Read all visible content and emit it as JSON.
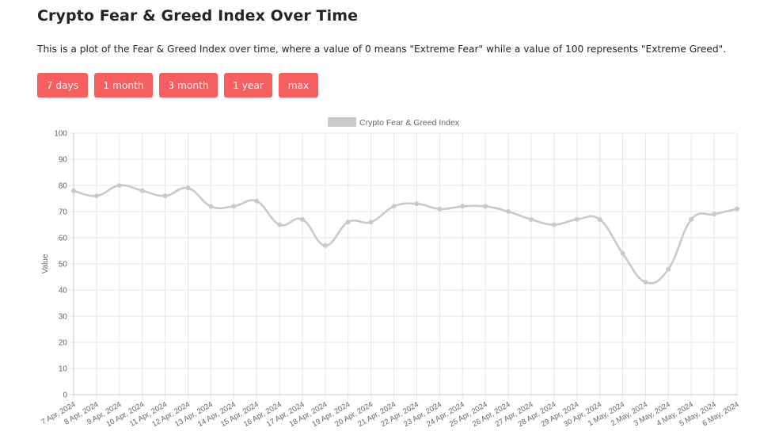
{
  "page": {
    "title": "Crypto Fear & Greed Index Over Time",
    "description": "This is a plot of the Fear & Greed Index over time, where a value of 0 means \"Extreme Fear\" while a value of 100 represents \"Extreme Greed\"."
  },
  "range_buttons": [
    {
      "label": "7 days"
    },
    {
      "label": "1 month"
    },
    {
      "label": "3 month"
    },
    {
      "label": "1 year"
    },
    {
      "label": "max"
    }
  ],
  "colors": {
    "button_bg": "#f55f5f",
    "button_text": "#ffffff",
    "series_line": "#c9c9c9",
    "grid": "#e6e6e6",
    "axis_text": "#666666"
  },
  "chart_data": {
    "type": "line",
    "legend": {
      "position": "top"
    },
    "ylabel": "Value",
    "ylim": [
      0,
      100
    ],
    "yticks": [
      0,
      10,
      20,
      30,
      40,
      50,
      60,
      70,
      80,
      90,
      100
    ],
    "grid": true,
    "categories": [
      "7 Apr, 2024",
      "8 Apr, 2024",
      "9 Apr, 2024",
      "10 Apr, 2024",
      "11 Apr, 2024",
      "12 Apr, 2024",
      "13 Apr, 2024",
      "14 Apr, 2024",
      "15 Apr, 2024",
      "16 Apr, 2024",
      "17 Apr, 2024",
      "18 Apr, 2024",
      "19 Apr, 2024",
      "20 Apr, 2024",
      "21 Apr, 2024",
      "22 Apr, 2024",
      "23 Apr, 2024",
      "24 Apr, 2024",
      "25 Apr, 2024",
      "26 Apr, 2024",
      "27 Apr, 2024",
      "28 Apr, 2024",
      "29 Apr, 2024",
      "30 Apr, 2024",
      "1 May, 2024",
      "2 May, 2024",
      "3 May, 2024",
      "4 May, 2024",
      "5 May, 2024",
      "6 May, 2024"
    ],
    "series": [
      {
        "name": "Crypto Fear & Greed Index",
        "values": [
          78,
          76,
          80,
          78,
          76,
          79,
          72,
          72,
          74,
          65,
          67,
          57,
          66,
          66,
          72,
          73,
          71,
          72,
          72,
          70,
          67,
          65,
          67,
          67,
          54,
          43,
          48,
          67,
          69,
          71
        ]
      }
    ]
  }
}
